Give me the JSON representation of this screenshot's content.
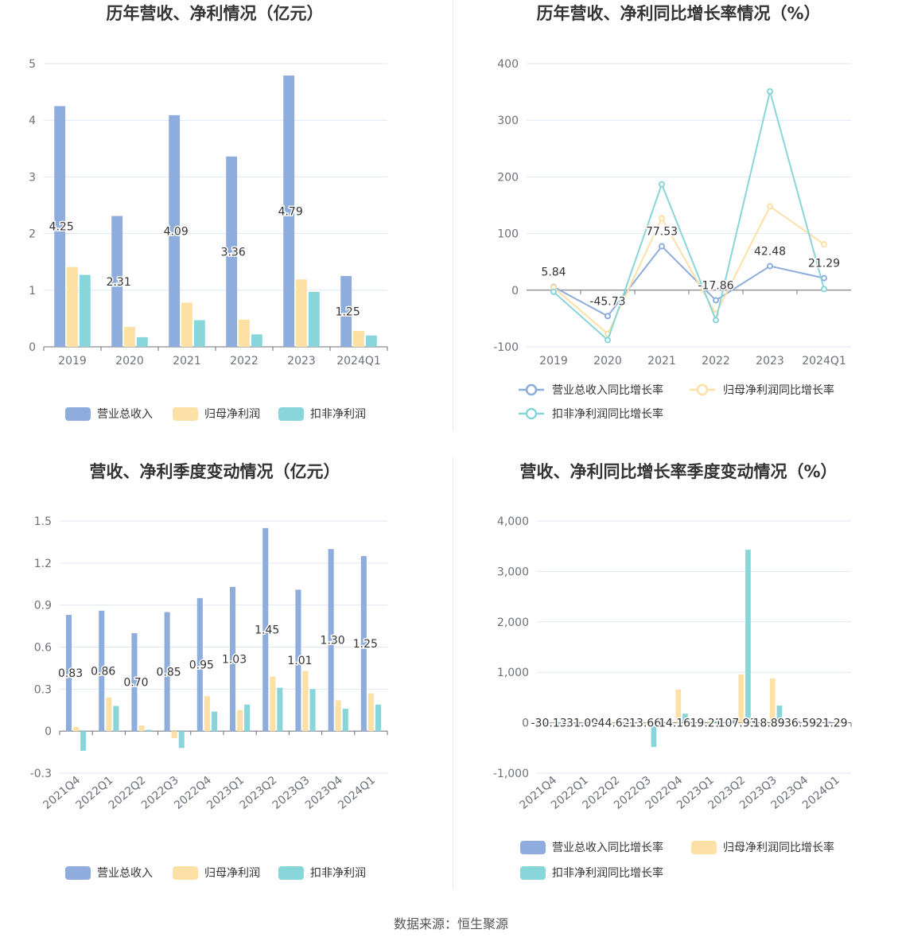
{
  "colors": {
    "revenue": "#8eaddc",
    "parent": "#fde0a6",
    "deduct": "#88d6da",
    "grid": "#e0e6f1",
    "axis": "#6e7079"
  },
  "source": "数据来源：恒生聚源",
  "chart_data": [
    {
      "type": "bar",
      "title": "历年营收、净利情况（亿元）",
      "categories": [
        "2019",
        "2020",
        "2021",
        "2022",
        "2023",
        "2024Q1"
      ],
      "yticks": [
        "0",
        "1",
        "2",
        "3",
        "4",
        "5"
      ],
      "ylim": [
        0,
        5
      ],
      "series": [
        {
          "name": "营业总收入",
          "values": [
            4.25,
            2.31,
            4.09,
            3.36,
            4.79,
            1.25
          ],
          "labels": [
            "4.25",
            "2.31",
            "4.09",
            "3.36",
            "4.79",
            "1.25"
          ]
        },
        {
          "name": "归母净利润",
          "values": [
            1.41,
            0.35,
            0.78,
            0.48,
            1.19,
            0.28
          ]
        },
        {
          "name": "扣非净利润",
          "values": [
            1.27,
            0.17,
            0.47,
            0.22,
            0.97,
            0.2
          ]
        }
      ],
      "legend": "bottom"
    },
    {
      "type": "line",
      "title": "历年营收、净利同比增长率情况（%）",
      "categories": [
        "2019",
        "2020",
        "2021",
        "2022",
        "2023",
        "2024Q1"
      ],
      "yticks": [
        "-100",
        "0",
        "100",
        "200",
        "300",
        "400"
      ],
      "ylim": [
        -100,
        400
      ],
      "series": [
        {
          "name": "营业总收入同比增长率",
          "values": [
            5.84,
            -45.73,
            77.53,
            -17.86,
            42.48,
            21.29
          ],
          "labels": [
            "5.84",
            "-45.73",
            "77.53",
            "-17.86",
            "42.48",
            "21.29"
          ]
        },
        {
          "name": "归母净利润同比增长率",
          "values": [
            5,
            -77,
            127,
            -42,
            148,
            81
          ]
        },
        {
          "name": "扣非净利润同比增长率",
          "values": [
            -3,
            -88,
            187,
            -53,
            351,
            2
          ]
        }
      ],
      "legend": "bottom"
    },
    {
      "type": "bar",
      "title": "营收、净利季度变动情况（亿元）",
      "categories": [
        "2021Q4",
        "2022Q1",
        "2022Q2",
        "2022Q3",
        "2022Q4",
        "2023Q1",
        "2023Q2",
        "2023Q3",
        "2023Q4",
        "2024Q1"
      ],
      "yticks": [
        "-0.3",
        "0",
        "0.3",
        "0.6",
        "0.9",
        "1.2",
        "1.5"
      ],
      "ylim": [
        -0.3,
        1.5
      ],
      "series": [
        {
          "name": "营业总收入",
          "values": [
            0.83,
            0.86,
            0.7,
            0.85,
            0.95,
            1.03,
            1.45,
            1.01,
            1.3,
            1.25
          ],
          "labels": [
            "0.83",
            "0.86",
            "0.70",
            "0.85",
            "0.95",
            "1.03",
            "1.45",
            "1.01",
            "1.30",
            "1.25"
          ]
        },
        {
          "name": "归母净利润",
          "values": [
            0.03,
            0.24,
            0.04,
            -0.05,
            0.25,
            0.15,
            0.39,
            0.43,
            0.22,
            0.27
          ]
        },
        {
          "name": "扣非净利润",
          "values": [
            -0.14,
            0.18,
            0.01,
            -0.12,
            0.14,
            0.19,
            0.31,
            0.3,
            0.16,
            0.19
          ]
        }
      ],
      "legend": "bottom"
    },
    {
      "type": "bar",
      "title": "营收、净利同比增长率季度变动情况（%）",
      "categories": [
        "2021Q4",
        "2022Q1",
        "2022Q2",
        "2022Q3",
        "2022Q4",
        "2023Q1",
        "2023Q2",
        "2023Q3",
        "2023Q4",
        "2024Q1"
      ],
      "yticks": [
        "-1,000",
        "0",
        "1,000",
        "2,000",
        "3,000",
        "4,000"
      ],
      "ylim": [
        -1000,
        4000
      ],
      "series": [
        {
          "name": "营业总收入同比增长率",
          "values": [
            -30.13,
            -31.09,
            -44.62,
            -13.66,
            14.16,
            19.21,
            107.93,
            18.89,
            36.59,
            21.29
          ],
          "labels": [
            "-30.13",
            "-31.09",
            "-44.62",
            "-13.66",
            "14.16",
            "19.21",
            "107.93",
            "18.89",
            "36.59",
            "21.29"
          ]
        },
        {
          "name": "归母净利润同比增长率",
          "values": [
            -10,
            -5,
            -20,
            -60,
            660,
            40,
            960,
            880,
            10,
            15
          ]
        },
        {
          "name": "扣非净利润同比增长率",
          "values": [
            -70,
            -15,
            -30,
            -480,
            180,
            30,
            3430,
            340,
            20,
            10
          ]
        }
      ],
      "legend": "bottom"
    }
  ]
}
